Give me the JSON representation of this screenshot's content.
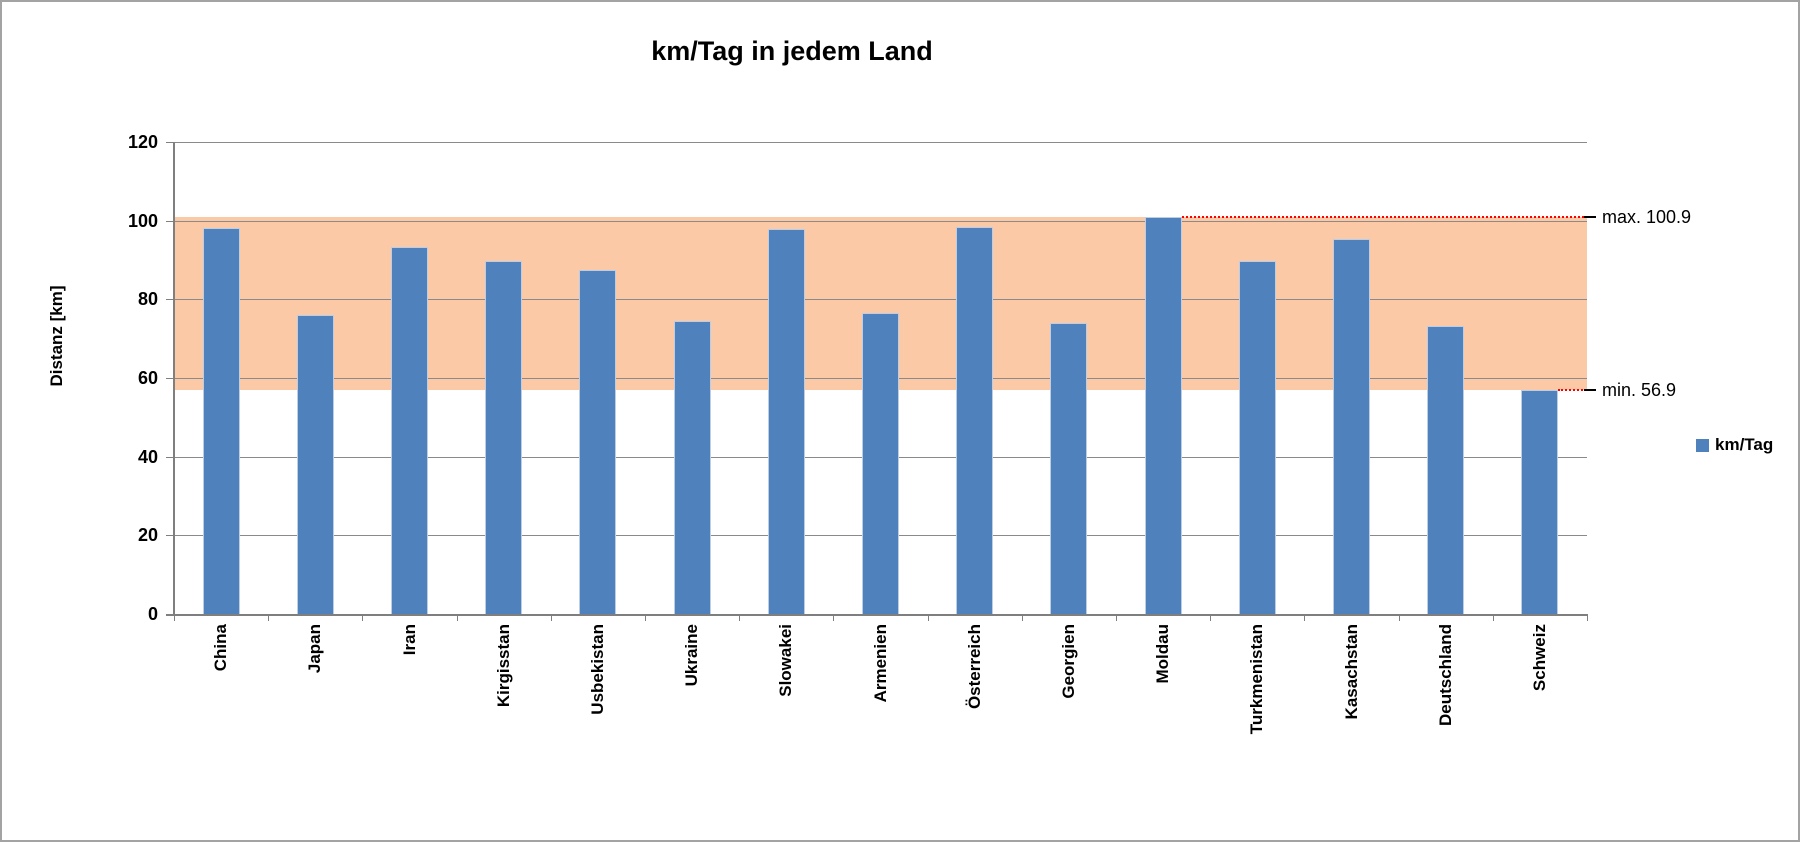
{
  "chart_data": {
    "type": "bar",
    "title": "km/Tag in jedem Land",
    "ylabel": "Distanz [km]",
    "categories": [
      "China",
      "Japan",
      "Iran",
      "Kirgisstan",
      "Usbekistan",
      "Ukraine",
      "Slowakei",
      "Armenien",
      "Österreich",
      "Georgien",
      "Moldau",
      "Turkmenistan",
      "Kasachstan",
      "Deutschland",
      "Schweiz"
    ],
    "series": [
      {
        "name": "km/Tag",
        "values": [
          98.1,
          75.9,
          93.4,
          89.7,
          87.4,
          74.5,
          98.0,
          76.6,
          98.4,
          74.0,
          100.9,
          89.7,
          95.3,
          73.2,
          56.9
        ]
      }
    ],
    "ylim": [
      0,
      120
    ],
    "yticks": [
      0,
      20,
      40,
      60,
      80,
      100,
      120
    ],
    "grid": true,
    "legend_position": "right",
    "legend": {
      "label": "km/Tag",
      "swatch_color": "#4F81BD"
    },
    "band": {
      "min": 56.9,
      "max": 100.9,
      "color": "#FCC9A6"
    },
    "annotations": [
      {
        "id": "max",
        "label": "max. 100.9",
        "value": 100.9
      },
      {
        "id": "min",
        "label": "min. 56.9",
        "value": 56.9
      }
    ],
    "colors": {
      "bar": "#4F81BD",
      "band": "#FCC9A6",
      "gridline": "#8A8A8A",
      "axis": "#7F7F7F",
      "annotation_line": "#FF0000"
    }
  }
}
